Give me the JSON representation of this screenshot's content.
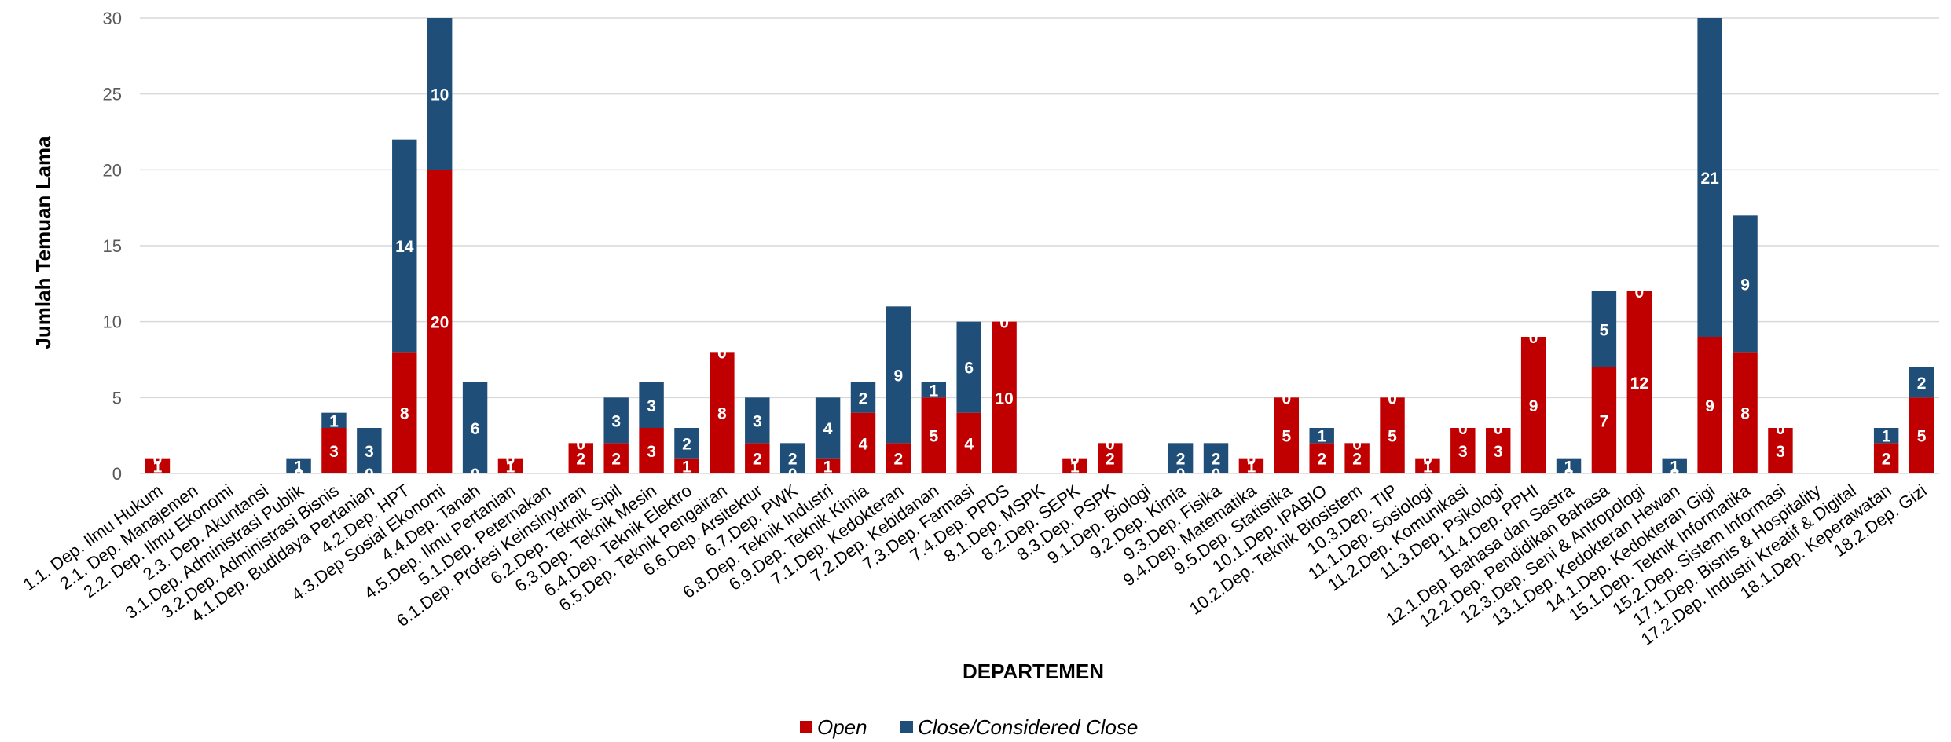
{
  "chart_data": {
    "type": "bar",
    "stacked": true,
    "xlabel": "DEPARTEMEN",
    "ylabel": "Jumlah Temuan Lama",
    "ylim": [
      0,
      30
    ],
    "yticks": [
      0,
      5,
      10,
      15,
      20,
      25,
      30
    ],
    "grid": true,
    "legend_position": "bottom",
    "categories": [
      "1.1. Dep. Ilmu Hukum",
      "2.1. Dep. Manajemen",
      "2.2. Dep. Ilmu Ekonomi",
      "2.3. Dep. Akuntansi",
      "3.1.Dep. Administrasi Publik",
      "3.2.Dep. Administrasi Bisnis",
      "4.1.Dep. Budidaya Pertanian",
      "4.2.Dep. HPT",
      "4.3.Dep Sosial Ekonomi",
      "4.4.Dep. Tanah",
      "4.5.Dep. Ilmu Pertanian",
      "5.1.Dep. Peternakan",
      "6.1.Dep. Profesi Keinsinyuran",
      "6.2.Dep. Teknik Sipil",
      "6.3.Dep. Teknik Mesin",
      "6.4.Dep. Teknik Elektro",
      "6.5.Dep. Teknik Pengairan",
      "6.6.Dep. Arsitektur",
      "6.7.Dep. PWK",
      "6.8.Dep. Teknik Industri",
      "6.9.Dep. Teknik Kimia",
      "7.1.Dep. Kedokteran",
      "7.2.Dep. Kebidanan",
      "7.3.Dep. Farmasi",
      "7.4.Dep. PPDS",
      "8.1.Dep. MSPK",
      "8.2.Dep. SEPK",
      "8.3.Dep. PSPK",
      "9.1.Dep. Biologi",
      "9.2.Dep. Kimia",
      "9.3.Dep. Fisika",
      "9.4.Dep. Matematika",
      "9.5.Dep. Statistika",
      "10.1.Dep. IPABIO",
      "10.2.Dep. Teknik Biosistem",
      "10.3.Dep. TIP",
      "11.1.Dep. Sosiologi",
      "11.2.Dep. Komunikasi",
      "11.3.Dep. Psikologi",
      "11.4.Dep. PPHI",
      "12.1.Dep. Bahasa dan Sastra",
      "12.2.Dep. Pendidikan Bahasa",
      "12.3.Dep. Seni & Antropologi",
      "13.1.Dep. Kedokteran Hewan",
      "14.1.Dep. Kedokteran Gigi",
      "15.1.Dep. Teknik Informatika",
      "15.2.Dep. Sistem Informasi",
      "17.1.Dep. Bisnis & Hospitality",
      "17.2.Dep. Industri Kreatif & Digital",
      "18.1.Dep. Keperawatan",
      "18.2.Dep. Gizi"
    ],
    "series": [
      {
        "name": "Open",
        "color": "#c00000",
        "values": [
          1,
          0,
          0,
          0,
          0,
          3,
          0,
          8,
          20,
          0,
          1,
          0,
          2,
          2,
          3,
          1,
          8,
          2,
          0,
          1,
          4,
          2,
          5,
          4,
          10,
          0,
          1,
          2,
          0,
          0,
          0,
          1,
          5,
          2,
          2,
          5,
          1,
          3,
          3,
          9,
          0,
          7,
          12,
          0,
          9,
          8,
          3,
          0,
          0,
          2,
          5
        ]
      },
      {
        "name": "Close/Considered Close",
        "color": "#1f4e79",
        "values": [
          0,
          0,
          0,
          0,
          1,
          1,
          3,
          14,
          10,
          6,
          0,
          0,
          0,
          3,
          3,
          2,
          0,
          3,
          2,
          4,
          2,
          9,
          1,
          6,
          0,
          0,
          0,
          0,
          0,
          2,
          2,
          0,
          0,
          1,
          0,
          0,
          0,
          0,
          0,
          0,
          1,
          5,
          0,
          1,
          21,
          9,
          0,
          0,
          0,
          1,
          2
        ]
      }
    ]
  }
}
